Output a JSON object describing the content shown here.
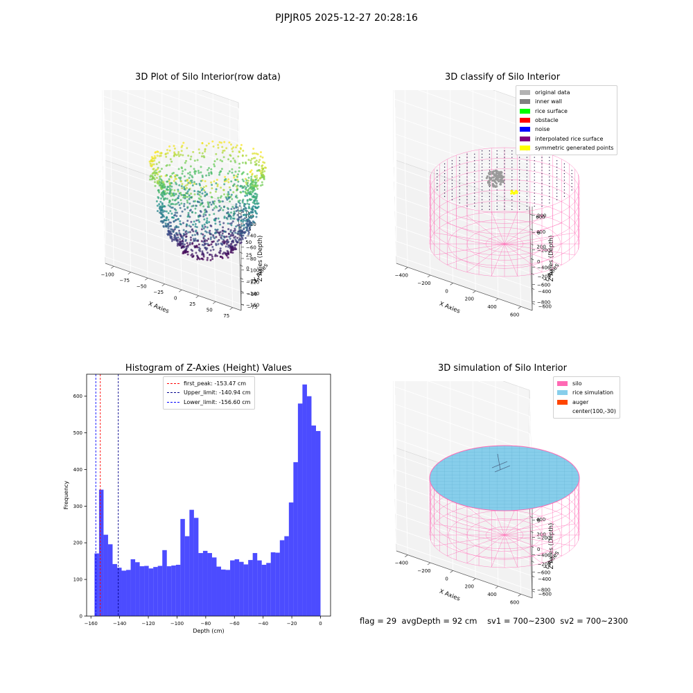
{
  "suptitle": "PJPJR05 2025-12-27 20:28:16",
  "status": {
    "flag": "flag = 29",
    "avg_depth": "avgDepth = 92 cm",
    "sv1": "sv1 = 700~2300",
    "sv2": "sv2 = 700~2300"
  },
  "panels": {
    "raw": {
      "title": "3D Plot of Silo Interior(row data)",
      "xlabel": "X Axies",
      "ylabel": "Y Axies",
      "zlabel": "Z Axies (Depth)",
      "xticks": [
        "−100",
        "−75",
        "−50",
        "−25",
        "0",
        "25",
        "50",
        "75"
      ],
      "yticks": [
        "−75",
        "−50",
        "−25",
        "0",
        "25",
        "50",
        "75",
        "100"
      ],
      "zticks": [
        "0",
        "−20",
        "−40",
        "−60",
        "−80",
        "−100",
        "−120",
        "−140",
        "−160"
      ]
    },
    "classify": {
      "title": "3D classify of Silo Interior",
      "xlabel": "X Axies",
      "ylabel": "Y Axies",
      "zlabel": "Z Axies (Depth)",
      "xticks": [
        "−400",
        "−200",
        "0",
        "200",
        "400",
        "600"
      ],
      "yticks": [
        "−600",
        "−400",
        "−200",
        "0",
        "200",
        "400",
        "600"
      ],
      "zticks": [
        "200",
        "0",
        "−200",
        "−400",
        "−600",
        "−800"
      ],
      "legend": [
        {
          "label": "original data",
          "color": "#b3b3b3"
        },
        {
          "label": "inner wall",
          "color": "#808080"
        },
        {
          "label": "rice surface",
          "color": "#00ff00"
        },
        {
          "label": "obstacle",
          "color": "#ff0000"
        },
        {
          "label": "noise",
          "color": "#0000ff"
        },
        {
          "label": "interpolated rice surface",
          "color": "#800080"
        },
        {
          "label": "symmetric generated points",
          "color": "#ffff00"
        }
      ]
    },
    "simulation": {
      "title": "3D simulation of Silo Interior",
      "xlabel": "X Axies",
      "ylabel": "Y Axies",
      "zlabel": "Z Axies (Depth)",
      "xticks": [
        "−400",
        "−200",
        "0",
        "200",
        "400",
        "600"
      ],
      "yticks": [
        "−600",
        "−400",
        "−200",
        "0",
        "200",
        "400",
        "600"
      ],
      "zticks": [
        "200",
        "0",
        "−200",
        "−400",
        "−600",
        "−800"
      ],
      "legend": [
        {
          "label": "silo",
          "color": "#ff69b4"
        },
        {
          "label": "rice simulation",
          "color": "#87ceeb"
        },
        {
          "label": "auger",
          "color": "#ff4500"
        },
        {
          "label": "center(100,-30)",
          "color": ""
        }
      ]
    }
  },
  "chart_data": {
    "type": "bar",
    "title": "Histogram of Z-Axies (Height) Values",
    "xlabel": "Depth (cm)",
    "ylabel": "Frequency",
    "xlim": [
      -163,
      7
    ],
    "ylim": [
      0,
      660
    ],
    "xticks": [
      -160,
      -140,
      -120,
      -100,
      -80,
      -60,
      -40,
      -20,
      0
    ],
    "yticks": [
      0,
      100,
      200,
      300,
      400,
      500,
      600
    ],
    "bin_start": -157.5,
    "bin_width": 3.15,
    "bar_color": "#0000ff",
    "values": [
      171,
      345,
      222,
      196,
      142,
      132,
      124,
      126,
      155,
      147,
      136,
      137,
      130,
      134,
      137,
      180,
      136,
      138,
      140,
      265,
      218,
      290,
      268,
      172,
      178,
      172,
      160,
      135,
      127,
      126,
      152,
      155,
      148,
      141,
      153,
      172,
      152,
      140,
      145,
      174,
      173,
      207,
      218,
      310,
      420,
      580,
      632,
      600,
      520,
      505
    ],
    "vlines": [
      {
        "label": "first_peak: -153.47 cm",
        "x": -153.47,
        "color": "#ff0000"
      },
      {
        "label": "Upper_limit: -140.94 cm",
        "x": -140.94,
        "color": "#00008b"
      },
      {
        "label": "Lower_limit: -156.60 cm",
        "x": -156.6,
        "color": "#0000ff"
      }
    ]
  }
}
